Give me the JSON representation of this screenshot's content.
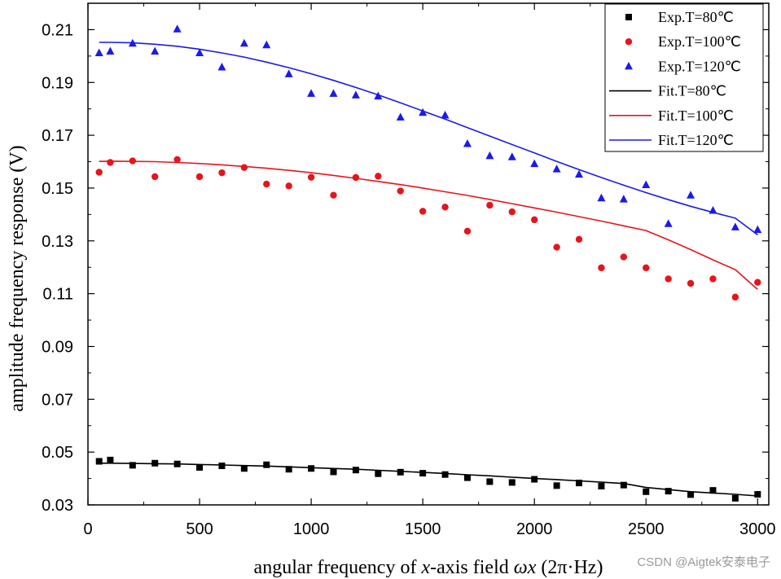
{
  "chart_data": {
    "type": "scatter",
    "xlabel_parts": {
      "pre": "angular frequency of ",
      "x_italic": "x",
      "mid": "-axis field ",
      "omega": "ωx",
      "unit": " (2π·Hz)"
    },
    "ylabel": "amplitude frequency response (V)",
    "xlim": [
      0,
      3050
    ],
    "ylim": [
      0.03,
      0.22
    ],
    "x_ticks": [
      0,
      500,
      1000,
      1500,
      2000,
      2500,
      3000
    ],
    "x_tick_labels": [
      "0",
      "500",
      "1000",
      "1500",
      "2000",
      "2500",
      "3000"
    ],
    "y_ticks": [
      0.03,
      0.05,
      0.07,
      0.09,
      0.11,
      0.13,
      0.15,
      0.17,
      0.19,
      0.21
    ],
    "y_tick_labels": [
      "0.03",
      "0.05",
      "0.07",
      "0.09",
      "0.11",
      "0.13",
      "0.15",
      "0.17",
      "0.19",
      "0.21"
    ],
    "legend_position": "top-right",
    "x": [
      50,
      100,
      200,
      300,
      400,
      500,
      600,
      700,
      800,
      900,
      1000,
      1100,
      1200,
      1300,
      1400,
      1500,
      1600,
      1700,
      1800,
      1900,
      2000,
      2100,
      2200,
      2300,
      2400,
      2500,
      2600,
      2700,
      2800,
      2900,
      3000
    ],
    "series": [
      {
        "name": "Exp.T=80℃",
        "kind": "scatter",
        "marker": "square",
        "color": "#000000",
        "values": [
          0.0465,
          0.047,
          0.045,
          0.0458,
          0.0455,
          0.0442,
          0.0448,
          0.0438,
          0.0452,
          0.0435,
          0.0438,
          0.0425,
          0.0432,
          0.0418,
          0.0424,
          0.042,
          0.0415,
          0.0403,
          0.0388,
          0.0385,
          0.0397,
          0.0373,
          0.0383,
          0.0371,
          0.0375,
          0.035,
          0.0352,
          0.0339,
          0.0355,
          0.0325,
          0.034
        ]
      },
      {
        "name": "Exp.T=100℃",
        "kind": "scatter",
        "marker": "circle",
        "color": "#e8141b",
        "values": [
          0.156,
          0.1597,
          0.1603,
          0.1543,
          0.1608,
          0.1543,
          0.1558,
          0.1578,
          0.1515,
          0.1508,
          0.1541,
          0.1473,
          0.154,
          0.1545,
          0.1489,
          0.1412,
          0.1428,
          0.1337,
          0.1435,
          0.141,
          0.138,
          0.1276,
          0.1306,
          0.1198,
          0.1239,
          0.1198,
          0.1156,
          0.1139,
          0.1156,
          0.1087,
          0.1143
        ]
      },
      {
        "name": "Exp.T=120℃",
        "kind": "scatter",
        "marker": "triangle",
        "color": "#1a1aeb",
        "values": [
          0.2012,
          0.2018,
          0.2048,
          0.2018,
          0.2102,
          0.2012,
          0.1958,
          0.2048,
          0.2042,
          0.1932,
          0.1858,
          0.1858,
          0.1852,
          0.1848,
          0.1768,
          0.1786,
          0.1776,
          0.1668,
          0.1622,
          0.1618,
          0.1592,
          0.1572,
          0.1552,
          0.1462,
          0.1458,
          0.1512,
          0.1365,
          0.1473,
          0.1415,
          0.1352,
          0.1342
        ]
      },
      {
        "name": "Fit.T=80℃",
        "kind": "line",
        "color": "#000000",
        "values": [
          0.0458,
          0.0458,
          0.0457,
          0.0456,
          0.0455,
          0.0453,
          0.0451,
          0.0449,
          0.0447,
          0.0444,
          0.0441,
          0.0438,
          0.0435,
          0.0431,
          0.0427,
          0.0423,
          0.0419,
          0.0414,
          0.041,
          0.0405,
          0.04,
          0.0396,
          0.0391,
          0.0386,
          0.0381,
          0.0366,
          0.0358,
          0.035,
          0.0345,
          0.034,
          0.0334
        ]
      },
      {
        "name": "Fit.T=100℃",
        "kind": "line",
        "color": "#e8141b",
        "values": [
          0.1601,
          0.1602,
          0.1601,
          0.16,
          0.1597,
          0.1593,
          0.1588,
          0.1582,
          0.1575,
          0.1567,
          0.1558,
          0.1548,
          0.1537,
          0.1525,
          0.1513,
          0.15,
          0.1486,
          0.1472,
          0.1457,
          0.1441,
          0.1425,
          0.1409,
          0.1392,
          0.1375,
          0.1357,
          0.1339,
          0.1304,
          0.1267,
          0.1228,
          0.1191,
          0.1116
        ]
      },
      {
        "name": "Fit.T=120℃",
        "kind": "line",
        "color": "#1a1aeb",
        "values": [
          0.2052,
          0.2052,
          0.205,
          0.2045,
          0.2037,
          0.2026,
          0.2012,
          0.1996,
          0.1977,
          0.1956,
          0.1933,
          0.1908,
          0.1881,
          0.1853,
          0.1823,
          0.1792,
          0.1761,
          0.1729,
          0.1697,
          0.1665,
          0.1633,
          0.1601,
          0.157,
          0.154,
          0.1511,
          0.1483,
          0.1456,
          0.1431,
          0.1408,
          0.1386,
          0.1323
        ]
      }
    ]
  },
  "watermark": "CSDN @Aigtek安泰电子"
}
